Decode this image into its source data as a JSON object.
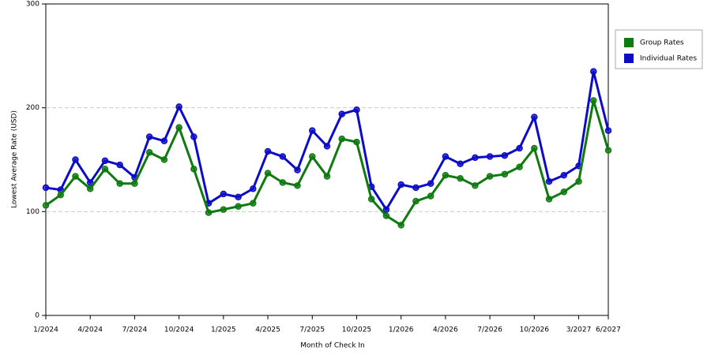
{
  "chart_data": {
    "type": "line",
    "x_label": "Month of Check In",
    "y_label": "Lowest Average Rate (USD)",
    "categories": [
      "1/2024",
      null,
      null,
      "4/2024",
      null,
      null,
      "7/2024",
      null,
      null,
      "10/2024",
      null,
      null,
      "1/2025",
      null,
      null,
      "4/2025",
      null,
      null,
      "7/2025",
      null,
      null,
      "10/2025",
      null,
      null,
      "1/2026",
      null,
      null,
      "4/2026",
      null,
      null,
      "7/2026",
      null,
      null,
      "10/2026",
      null,
      null,
      "3/2027",
      null,
      "6/2027"
    ],
    "series": [
      {
        "name": "Group Rates",
        "color": "#0f7a0f",
        "values": [
          106,
          116,
          134,
          122,
          141,
          127,
          127,
          157,
          150,
          181,
          141,
          99,
          102,
          105,
          108,
          137,
          128,
          125,
          153,
          134,
          170,
          167,
          112,
          96,
          87,
          110,
          115,
          135,
          132,
          125,
          134,
          136,
          143,
          161,
          112,
          119,
          129,
          207,
          159
        ]
      },
      {
        "name": "Individual Rates",
        "color": "#0c0cc8",
        "values": [
          123,
          121,
          150,
          128,
          149,
          145,
          133,
          172,
          168,
          201,
          172,
          108,
          117,
          114,
          122,
          158,
          153,
          140,
          178,
          163,
          194,
          198,
          124,
          102,
          126,
          123,
          127,
          153,
          146,
          152,
          153,
          154,
          161,
          191,
          129,
          135,
          144,
          235,
          178
        ]
      }
    ],
    "ylim": [
      0,
      300
    ],
    "yticks": [
      0,
      100,
      200,
      300
    ],
    "grid": true,
    "legend": "right"
  }
}
